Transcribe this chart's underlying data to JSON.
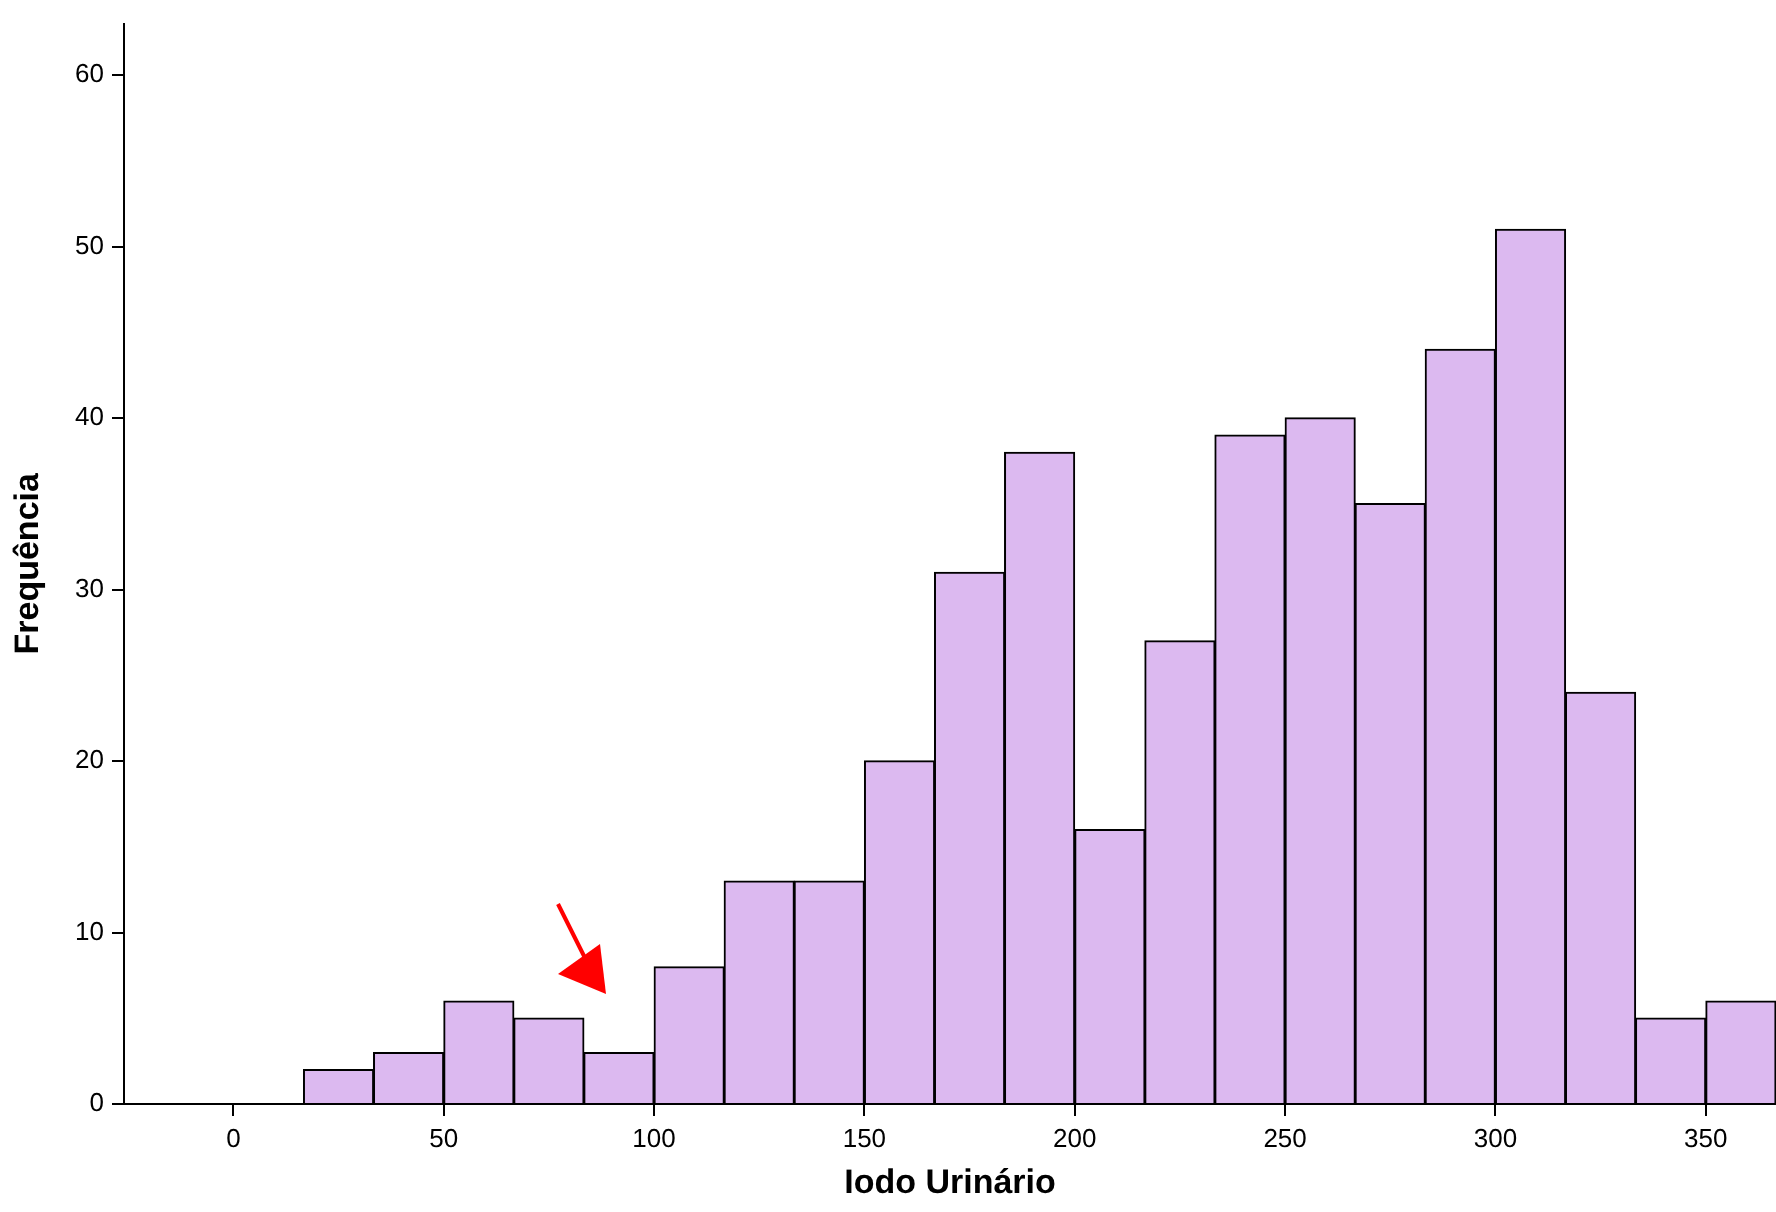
{
  "chart_data": {
    "type": "histogram",
    "xlabel": "Iodo Urinário",
    "ylabel": "Frequência",
    "bins": [
      16.7,
      33.3,
      50,
      66.7,
      83.3,
      100,
      116.7,
      133.3,
      150,
      166.7,
      183.3,
      200,
      216.7,
      233.3,
      250,
      266.7,
      283.3,
      300,
      316.7,
      333.3,
      350,
      366.7
    ],
    "values": [
      2,
      3,
      6,
      5,
      3,
      8,
      13,
      13,
      20,
      31,
      38,
      16,
      27,
      39,
      40,
      35,
      44,
      51,
      24,
      5,
      6
    ],
    "color": "#dcb9f0",
    "xlim": [
      -26,
      366.7
    ],
    "xticks": [
      0,
      50,
      100,
      150,
      200,
      250,
      300,
      350
    ],
    "ylim": [
      0,
      63
    ],
    "yticks": [
      0,
      10,
      20,
      30,
      40,
      50,
      60
    ],
    "grid": false,
    "legend": false
  }
}
